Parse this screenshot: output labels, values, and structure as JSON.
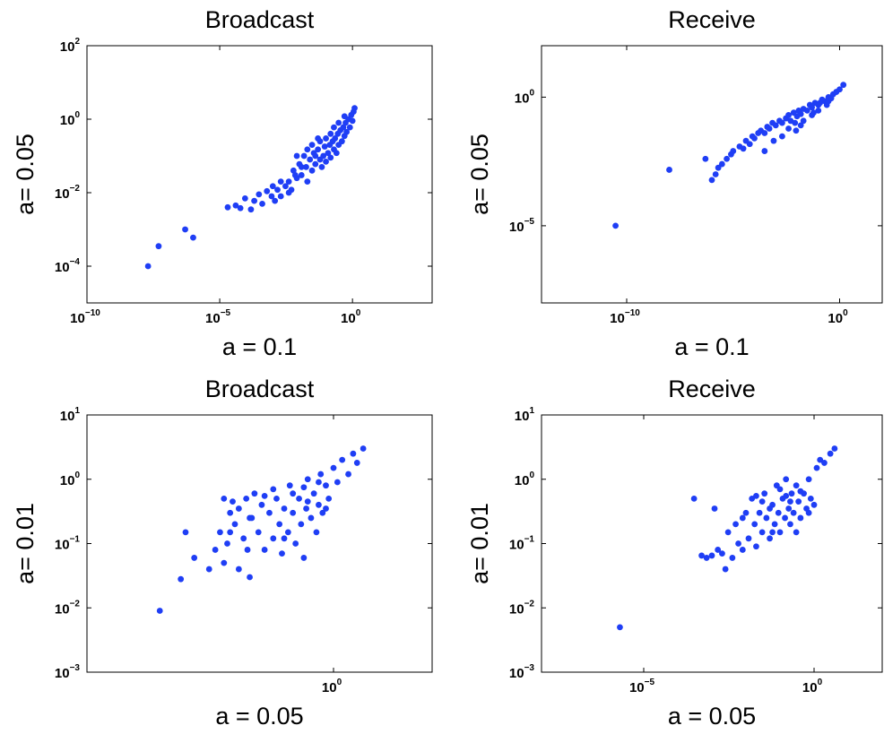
{
  "colors": {
    "points": "#1f3ef5",
    "axes": "#000000",
    "background": "#ffffff"
  },
  "chart_data": [
    {
      "type": "scatter",
      "title": "Broadcast",
      "xlabel": "a = 0.1",
      "ylabel": "a= 0.05",
      "xscale": "log",
      "yscale": "log",
      "xlim": [
        1e-10,
        1000
      ],
      "ylim": [
        1e-05,
        100
      ],
      "xticks": [
        {
          "base": "10",
          "exp": "−10",
          "value": 1e-10
        },
        {
          "base": "10",
          "exp": "−5",
          "value": 1e-05
        },
        {
          "base": "10",
          "exp": "0",
          "value": 1
        }
      ],
      "yticks": [
        {
          "base": "10",
          "exp": "−4",
          "value": 0.0001
        },
        {
          "base": "10",
          "exp": "−2",
          "value": 0.01
        },
        {
          "base": "10",
          "exp": "0",
          "value": 1
        },
        {
          "base": "10",
          "exp": "2",
          "value": 100
        }
      ],
      "points": [
        [
          2e-08,
          0.0001
        ],
        [
          5e-08,
          0.00035
        ],
        [
          5e-07,
          0.001
        ],
        [
          1e-06,
          0.0006
        ],
        [
          2e-05,
          0.004
        ],
        [
          4e-05,
          0.0045
        ],
        [
          6e-05,
          0.0038
        ],
        [
          9e-05,
          0.007
        ],
        [
          0.00015,
          0.0035
        ],
        [
          0.0002,
          0.006
        ],
        [
          0.0003,
          0.009
        ],
        [
          0.0004,
          0.005
        ],
        [
          0.0006,
          0.011
        ],
        [
          0.0009,
          0.008
        ],
        [
          0.0012,
          0.006
        ],
        [
          0.0015,
          0.012
        ],
        [
          0.002,
          0.008
        ],
        [
          0.003,
          0.015
        ],
        [
          0.004,
          0.02
        ],
        [
          0.005,
          0.012
        ],
        [
          0.006,
          0.04
        ],
        [
          0.008,
          0.025
        ],
        [
          0.01,
          0.06
        ],
        [
          0.012,
          0.03
        ],
        [
          0.015,
          0.1
        ],
        [
          0.018,
          0.05
        ],
        [
          0.02,
          0.02
        ],
        [
          0.025,
          0.08
        ],
        [
          0.03,
          0.04
        ],
        [
          0.035,
          0.12
        ],
        [
          0.04,
          0.06
        ],
        [
          0.05,
          0.15
        ],
        [
          0.06,
          0.08
        ],
        [
          0.07,
          0.05
        ],
        [
          0.08,
          0.1
        ],
        [
          0.09,
          0.18
        ],
        [
          0.1,
          0.07
        ],
        [
          0.12,
          0.12
        ],
        [
          0.14,
          0.2
        ],
        [
          0.15,
          0.09
        ],
        [
          0.18,
          0.25
        ],
        [
          0.2,
          0.15
        ],
        [
          0.22,
          0.3
        ],
        [
          0.25,
          0.12
        ],
        [
          0.28,
          0.4
        ],
        [
          0.3,
          0.2
        ],
        [
          0.35,
          0.5
        ],
        [
          0.4,
          0.25
        ],
        [
          0.45,
          0.6
        ],
        [
          0.5,
          0.35
        ],
        [
          0.55,
          0.8
        ],
        [
          0.6,
          0.45
        ],
        [
          0.7,
          1.0
        ],
        [
          0.8,
          0.6
        ],
        [
          0.9,
          1.3
        ],
        [
          1.0,
          0.9
        ],
        [
          1.1,
          1.6
        ],
        [
          1.2,
          2.0
        ],
        [
          0.012,
          0.05
        ],
        [
          0.004,
          0.01
        ],
        [
          0.002,
          0.02
        ],
        [
          0.05,
          0.3
        ],
        [
          0.03,
          0.2
        ],
        [
          0.1,
          0.3
        ],
        [
          0.007,
          0.03
        ],
        [
          0.06,
          0.25
        ],
        [
          0.2,
          0.6
        ],
        [
          0.3,
          0.8
        ],
        [
          0.15,
          0.4
        ],
        [
          0.008,
          0.1
        ],
        [
          0.02,
          0.15
        ],
        [
          0.001,
          0.015
        ],
        [
          0.04,
          0.1
        ],
        [
          0.5,
          1.2
        ]
      ]
    },
    {
      "type": "scatter",
      "title": "Receive",
      "xlabel": "a = 0.1",
      "ylabel": "a= 0.05",
      "xscale": "log",
      "yscale": "log",
      "xlim": [
        1e-14,
        100
      ],
      "ylim": [
        1e-08,
        100
      ],
      "xticks": [
        {
          "base": "10",
          "exp": "−10",
          "value": 1e-10
        },
        {
          "base": "10",
          "exp": "0",
          "value": 1
        }
      ],
      "yticks": [
        {
          "base": "10",
          "exp": "−5",
          "value": 1e-05
        },
        {
          "base": "10",
          "exp": "0",
          "value": 1
        }
      ],
      "points": [
        [
          3e-11,
          1e-05
        ],
        [
          1e-08,
          0.0015
        ],
        [
          5e-07,
          0.004
        ],
        [
          1e-06,
          0.0006
        ],
        [
          1.5e-06,
          0.001
        ],
        [
          2e-06,
          0.0018
        ],
        [
          3e-06,
          0.0025
        ],
        [
          5e-06,
          0.004
        ],
        [
          8e-06,
          0.006
        ],
        [
          1e-05,
          0.008
        ],
        [
          2e-05,
          0.012
        ],
        [
          3e-05,
          0.01
        ],
        [
          4e-05,
          0.02
        ],
        [
          6e-05,
          0.015
        ],
        [
          8e-05,
          0.03
        ],
        [
          0.0001,
          0.025
        ],
        [
          0.00015,
          0.04
        ],
        [
          0.0002,
          0.05
        ],
        [
          0.0003,
          0.04
        ],
        [
          0.0004,
          0.07
        ],
        [
          0.0005,
          0.06
        ],
        [
          0.0007,
          0.1
        ],
        [
          0.001,
          0.08
        ],
        [
          0.0015,
          0.12
        ],
        [
          0.002,
          0.1
        ],
        [
          0.003,
          0.15
        ],
        [
          0.004,
          0.2
        ],
        [
          0.005,
          0.12
        ],
        [
          0.007,
          0.25
        ],
        [
          0.01,
          0.18
        ],
        [
          0.012,
          0.3
        ],
        [
          0.015,
          0.22
        ],
        [
          0.02,
          0.35
        ],
        [
          0.03,
          0.3
        ],
        [
          0.04,
          0.5
        ],
        [
          0.05,
          0.4
        ],
        [
          0.07,
          0.6
        ],
        [
          0.1,
          0.5
        ],
        [
          0.15,
          0.8
        ],
        [
          0.2,
          0.7
        ],
        [
          0.3,
          1.0
        ],
        [
          0.4,
          0.9
        ],
        [
          0.5,
          1.3
        ],
        [
          0.7,
          1.6
        ],
        [
          1.0,
          2.0
        ],
        [
          1.5,
          3.0
        ],
        [
          0.06,
          0.25
        ],
        [
          0.009,
          0.05
        ],
        [
          0.002,
          0.03
        ],
        [
          0.0008,
          0.02
        ],
        [
          0.02,
          0.12
        ],
        [
          0.1,
          0.3
        ],
        [
          0.25,
          0.5
        ],
        [
          0.004,
          0.06
        ],
        [
          0.0003,
          0.008
        ],
        [
          0.05,
          0.2
        ],
        [
          0.015,
          0.08
        ],
        [
          0.3,
          0.7
        ],
        [
          0.008,
          0.1
        ],
        [
          0.12,
          0.6
        ]
      ]
    },
    {
      "type": "scatter",
      "title": "Broadcast",
      "xlabel": "a = 0.05",
      "ylabel": "a= 0.01",
      "xscale": "log",
      "yscale": "log",
      "xlim": [
        1e-05,
        100
      ],
      "ylim": [
        0.001,
        10
      ],
      "xticks": [
        {
          "base": "10",
          "exp": "0",
          "value": 1
        }
      ],
      "yticks": [
        {
          "base": "10",
          "exp": "−3",
          "value": 0.001
        },
        {
          "base": "10",
          "exp": "−2",
          "value": 0.01
        },
        {
          "base": "10",
          "exp": "−1",
          "value": 0.1
        },
        {
          "base": "10",
          "exp": "0",
          "value": 1
        },
        {
          "base": "10",
          "exp": "1",
          "value": 10
        }
      ],
      "points": [
        [
          0.0003,
          0.009
        ],
        [
          0.0008,
          0.028
        ],
        [
          0.001,
          0.15
        ],
        [
          0.0015,
          0.06
        ],
        [
          0.003,
          0.04
        ],
        [
          0.004,
          0.08
        ],
        [
          0.005,
          0.15
        ],
        [
          0.006,
          0.05
        ],
        [
          0.007,
          0.1
        ],
        [
          0.008,
          0.3
        ],
        [
          0.01,
          0.2
        ],
        [
          0.012,
          0.04
        ],
        [
          0.015,
          0.12
        ],
        [
          0.017,
          0.5
        ],
        [
          0.018,
          0.08
        ],
        [
          0.02,
          0.03
        ],
        [
          0.022,
          0.25
        ],
        [
          0.025,
          0.6
        ],
        [
          0.03,
          0.15
        ],
        [
          0.035,
          0.4
        ],
        [
          0.04,
          0.08
        ],
        [
          0.05,
          0.3
        ],
        [
          0.06,
          0.12
        ],
        [
          0.07,
          0.5
        ],
        [
          0.08,
          0.2
        ],
        [
          0.09,
          0.07
        ],
        [
          0.1,
          0.35
        ],
        [
          0.12,
          0.15
        ],
        [
          0.13,
          0.8
        ],
        [
          0.15,
          0.3
        ],
        [
          0.17,
          0.1
        ],
        [
          0.2,
          0.5
        ],
        [
          0.22,
          0.2
        ],
        [
          0.25,
          0.06
        ],
        [
          0.28,
          0.35
        ],
        [
          0.3,
          1.0
        ],
        [
          0.35,
          0.25
        ],
        [
          0.4,
          0.6
        ],
        [
          0.45,
          0.15
        ],
        [
          0.5,
          0.4
        ],
        [
          0.55,
          1.2
        ],
        [
          0.6,
          0.3
        ],
        [
          0.7,
          0.8
        ],
        [
          0.8,
          0.5
        ],
        [
          1.0,
          1.5
        ],
        [
          1.2,
          0.9
        ],
        [
          1.5,
          2.0
        ],
        [
          2.0,
          1.2
        ],
        [
          2.5,
          2.5
        ],
        [
          3.0,
          1.8
        ],
        [
          4.0,
          3.0
        ],
        [
          0.006,
          0.5
        ],
        [
          0.009,
          0.45
        ],
        [
          0.04,
          0.55
        ],
        [
          0.06,
          0.7
        ],
        [
          0.1,
          0.12
        ],
        [
          0.15,
          0.6
        ],
        [
          0.3,
          0.45
        ],
        [
          0.5,
          0.9
        ],
        [
          0.02,
          0.25
        ],
        [
          0.008,
          0.15
        ],
        [
          0.012,
          0.35
        ],
        [
          0.25,
          0.75
        ],
        [
          0.7,
          0.35
        ]
      ]
    },
    {
      "type": "scatter",
      "title": "Receive",
      "xlabel": "a = 0.05",
      "ylabel": "a= 0.01",
      "xscale": "log",
      "yscale": "log",
      "xlim": [
        1e-08,
        100
      ],
      "ylim": [
        0.001,
        10
      ],
      "xticks": [
        {
          "base": "10",
          "exp": "−5",
          "value": 1e-05
        },
        {
          "base": "10",
          "exp": "0",
          "value": 1
        }
      ],
      "yticks": [
        {
          "base": "10",
          "exp": "−3",
          "value": 0.001
        },
        {
          "base": "10",
          "exp": "−2",
          "value": 0.01
        },
        {
          "base": "10",
          "exp": "−1",
          "value": 0.1
        },
        {
          "base": "10",
          "exp": "0",
          "value": 1
        },
        {
          "base": "10",
          "exp": "1",
          "value": 10
        }
      ],
      "points": [
        [
          2e-06,
          0.005
        ],
        [
          0.0003,
          0.5
        ],
        [
          0.0005,
          0.065
        ],
        [
          0.0007,
          0.06
        ],
        [
          0.001,
          0.065
        ],
        [
          0.0012,
          0.35
        ],
        [
          0.0015,
          0.08
        ],
        [
          0.002,
          0.07
        ],
        [
          0.0025,
          0.04
        ],
        [
          0.003,
          0.15
        ],
        [
          0.004,
          0.06
        ],
        [
          0.005,
          0.2
        ],
        [
          0.006,
          0.1
        ],
        [
          0.008,
          0.08
        ],
        [
          0.01,
          0.3
        ],
        [
          0.012,
          0.12
        ],
        [
          0.015,
          0.5
        ],
        [
          0.018,
          0.2
        ],
        [
          0.02,
          0.09
        ],
        [
          0.025,
          0.3
        ],
        [
          0.03,
          0.15
        ],
        [
          0.035,
          0.6
        ],
        [
          0.04,
          0.25
        ],
        [
          0.05,
          0.12
        ],
        [
          0.06,
          0.4
        ],
        [
          0.07,
          0.2
        ],
        [
          0.08,
          0.8
        ],
        [
          0.09,
          0.3
        ],
        [
          0.1,
          0.15
        ],
        [
          0.12,
          0.5
        ],
        [
          0.14,
          0.25
        ],
        [
          0.15,
          1.0
        ],
        [
          0.18,
          0.35
        ],
        [
          0.2,
          0.2
        ],
        [
          0.22,
          0.6
        ],
        [
          0.25,
          0.3
        ],
        [
          0.3,
          0.8
        ],
        [
          0.35,
          0.45
        ],
        [
          0.4,
          0.25
        ],
        [
          0.5,
          0.6
        ],
        [
          0.6,
          0.35
        ],
        [
          0.7,
          1.0
        ],
        [
          0.8,
          0.5
        ],
        [
          1.0,
          0.4
        ],
        [
          1.2,
          1.5
        ],
        [
          1.5,
          2.0
        ],
        [
          2.0,
          1.8
        ],
        [
          3.0,
          2.5
        ],
        [
          4.0,
          3.0
        ],
        [
          0.008,
          0.25
        ],
        [
          0.03,
          0.45
        ],
        [
          0.06,
          0.15
        ],
        [
          0.1,
          0.7
        ],
        [
          0.2,
          0.45
        ],
        [
          0.3,
          0.15
        ],
        [
          0.05,
          0.35
        ],
        [
          0.15,
          0.55
        ],
        [
          0.4,
          0.65
        ],
        [
          0.7,
          0.3
        ],
        [
          0.02,
          0.55
        ]
      ]
    }
  ]
}
